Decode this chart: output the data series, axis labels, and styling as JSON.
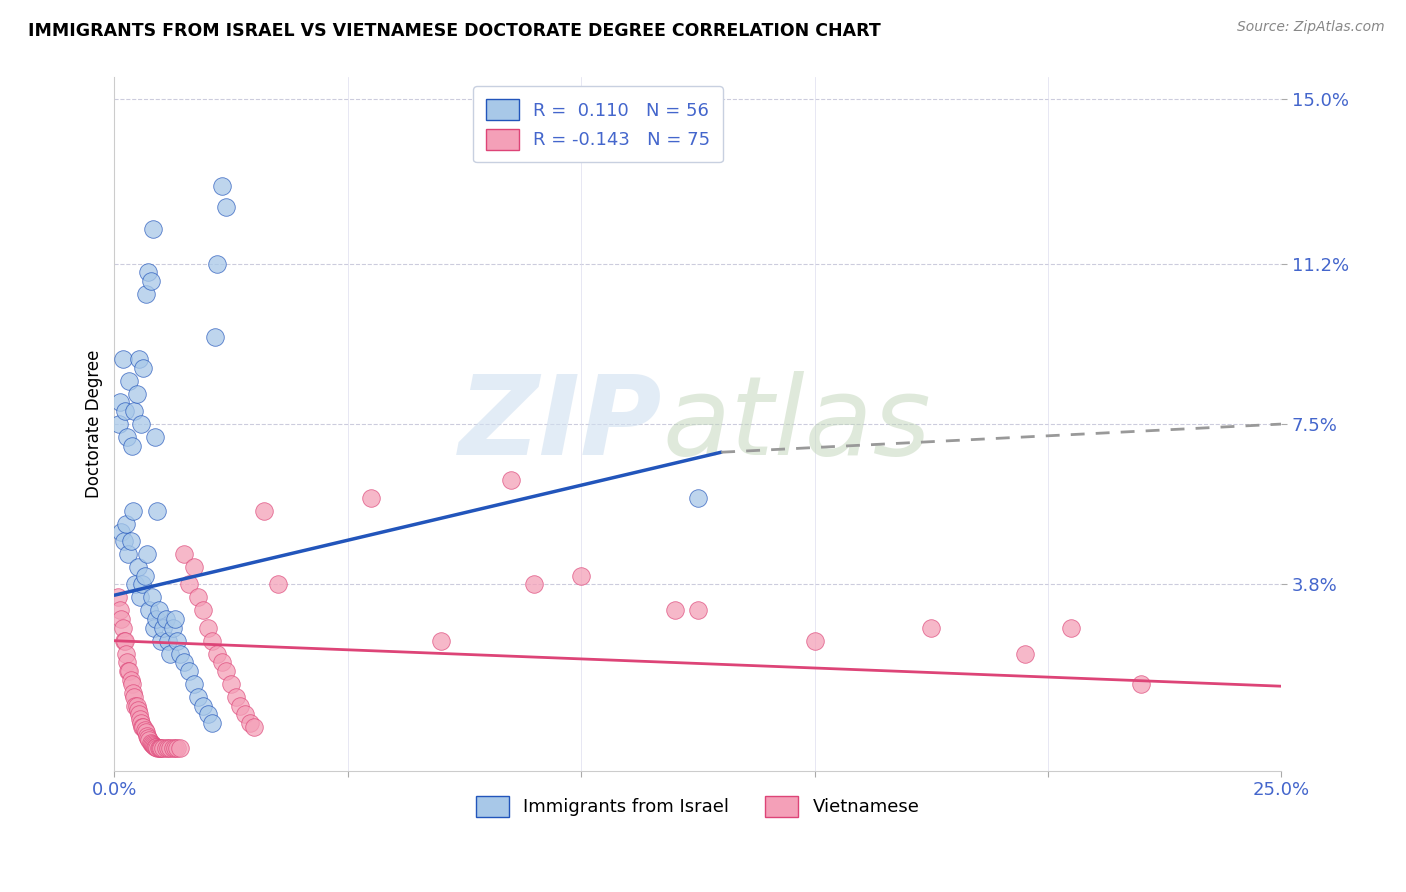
{
  "title": "IMMIGRANTS FROM ISRAEL VS VIETNAMESE DOCTORATE DEGREE CORRELATION CHART",
  "source": "Source: ZipAtlas.com",
  "ylabel": "Doctorate Degree",
  "ytick_labels": [
    "15.0%",
    "11.2%",
    "7.5%",
    "3.8%"
  ],
  "ytick_values": [
    15.0,
    11.2,
    7.5,
    3.8
  ],
  "xlim": [
    0.0,
    25.0
  ],
  "ylim": [
    -0.5,
    15.5
  ],
  "color_israel": "#a8c8e8",
  "color_vietnamese": "#f4a0b8",
  "color_line_israel": "#2255bb",
  "color_line_vietnamese": "#dd4477",
  "color_axis_labels": "#4466cc",
  "israel_trend_x0": 0.0,
  "israel_trend_y0": 3.55,
  "israel_trend_x1": 13.0,
  "israel_trend_y1": 6.85,
  "israel_dash_x0": 13.0,
  "israel_dash_y0": 6.85,
  "israel_dash_x1": 25.0,
  "israel_dash_y1": 7.5,
  "viet_trend_x0": 0.0,
  "viet_trend_y0": 2.5,
  "viet_trend_x1": 25.0,
  "viet_trend_y1": 1.45,
  "israel_points_x": [
    0.15,
    0.2,
    0.25,
    0.3,
    0.35,
    0.4,
    0.45,
    0.5,
    0.55,
    0.6,
    0.65,
    0.7,
    0.75,
    0.8,
    0.85,
    0.9,
    0.95,
    1.0,
    1.05,
    1.1,
    1.15,
    1.2,
    1.25,
    1.3,
    1.35,
    1.4,
    1.5,
    1.6,
    1.7,
    1.8,
    1.9,
    2.0,
    2.1,
    2.15,
    2.2,
    2.3,
    2.4,
    0.1,
    0.12,
    0.18,
    0.22,
    0.28,
    0.32,
    0.38,
    0.42,
    0.48,
    0.52,
    0.58,
    0.62,
    0.68,
    0.72,
    0.78,
    0.82,
    0.88,
    0.92,
    12.5
  ],
  "israel_points_y": [
    5.0,
    4.8,
    5.2,
    4.5,
    4.8,
    5.5,
    3.8,
    4.2,
    3.5,
    3.8,
    4.0,
    4.5,
    3.2,
    3.5,
    2.8,
    3.0,
    3.2,
    2.5,
    2.8,
    3.0,
    2.5,
    2.2,
    2.8,
    3.0,
    2.5,
    2.2,
    2.0,
    1.8,
    1.5,
    1.2,
    1.0,
    0.8,
    0.6,
    9.5,
    11.2,
    13.0,
    12.5,
    7.5,
    8.0,
    9.0,
    7.8,
    7.2,
    8.5,
    7.0,
    7.8,
    8.2,
    9.0,
    7.5,
    8.8,
    10.5,
    11.0,
    10.8,
    12.0,
    7.2,
    5.5,
    5.8
  ],
  "viet_points_x": [
    0.08,
    0.12,
    0.15,
    0.18,
    0.2,
    0.22,
    0.25,
    0.28,
    0.3,
    0.32,
    0.35,
    0.38,
    0.4,
    0.42,
    0.45,
    0.48,
    0.5,
    0.52,
    0.55,
    0.58,
    0.6,
    0.62,
    0.65,
    0.68,
    0.7,
    0.72,
    0.75,
    0.78,
    0.8,
    0.82,
    0.85,
    0.88,
    0.9,
    0.92,
    0.95,
    0.98,
    1.0,
    1.05,
    1.1,
    1.15,
    1.2,
    1.25,
    1.3,
    1.35,
    1.4,
    1.5,
    1.6,
    1.7,
    1.8,
    1.9,
    2.0,
    2.1,
    2.2,
    2.3,
    2.4,
    2.5,
    2.6,
    2.7,
    2.8,
    2.9,
    3.0,
    3.2,
    3.5,
    5.5,
    7.0,
    8.5,
    10.0,
    12.0,
    17.5,
    19.5,
    22.0,
    9.0,
    12.5,
    15.0,
    20.5
  ],
  "viet_points_y": [
    3.5,
    3.2,
    3.0,
    2.8,
    2.5,
    2.5,
    2.2,
    2.0,
    1.8,
    1.8,
    1.6,
    1.5,
    1.3,
    1.2,
    1.0,
    1.0,
    0.9,
    0.8,
    0.7,
    0.6,
    0.5,
    0.5,
    0.45,
    0.4,
    0.3,
    0.25,
    0.2,
    0.15,
    0.12,
    0.1,
    0.08,
    0.05,
    0.04,
    0.03,
    0.02,
    0.02,
    0.02,
    0.02,
    0.02,
    0.02,
    0.02,
    0.02,
    0.02,
    0.02,
    0.02,
    4.5,
    3.8,
    4.2,
    3.5,
    3.2,
    2.8,
    2.5,
    2.2,
    2.0,
    1.8,
    1.5,
    1.2,
    1.0,
    0.8,
    0.6,
    0.5,
    5.5,
    3.8,
    5.8,
    2.5,
    6.2,
    4.0,
    3.2,
    2.8,
    2.2,
    1.5,
    3.8,
    3.2,
    2.5,
    2.8
  ]
}
